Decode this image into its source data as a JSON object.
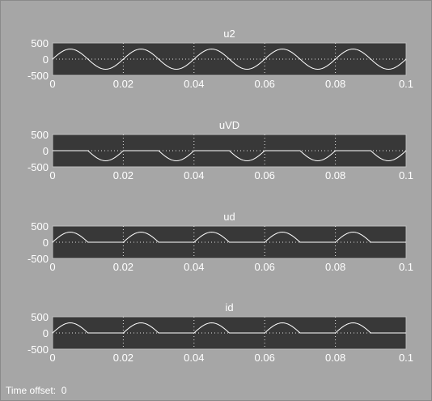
{
  "window": {
    "time_offset_label": "Time offset:",
    "time_offset_value": "0"
  },
  "colors": {
    "window_bg": "#a6a6a6",
    "plot_bg": "#383838",
    "trace": "#ffffff",
    "grid": "#e0e0e0",
    "text": "#ffffff"
  },
  "chart_data": [
    {
      "type": "line",
      "title": "u2",
      "xlim": [
        0,
        0.1
      ],
      "ylim": [
        -500,
        500
      ],
      "x_ticks": [
        "0",
        "0.02",
        "0.04",
        "0.06",
        "0.08",
        "0.1"
      ],
      "y_ticks": [
        "500",
        "0",
        "-500"
      ],
      "grid": true,
      "series": [
        {
          "amplitude": 311,
          "frequency_hz": 50,
          "waveform": "sine"
        }
      ]
    },
    {
      "type": "line",
      "title": "uVD",
      "xlim": [
        0,
        0.1
      ],
      "ylim": [
        -500,
        500
      ],
      "x_ticks": [
        "0",
        "0.02",
        "0.04",
        "0.06",
        "0.08",
        "0.1"
      ],
      "y_ticks": [
        "500",
        "0",
        "-500"
      ],
      "grid": true,
      "series": [
        {
          "amplitude": 311,
          "frequency_hz": 50,
          "waveform": "negative half-wave"
        }
      ]
    },
    {
      "type": "line",
      "title": "ud",
      "xlim": [
        0,
        0.1
      ],
      "ylim": [
        -500,
        500
      ],
      "x_ticks": [
        "0",
        "0.02",
        "0.04",
        "0.06",
        "0.08",
        "0.1"
      ],
      "y_ticks": [
        "500",
        "0",
        "-500"
      ],
      "grid": true,
      "series": [
        {
          "amplitude": 311,
          "frequency_hz": 50,
          "waveform": "positive half-wave"
        }
      ]
    },
    {
      "type": "line",
      "title": "id",
      "xlim": [
        0,
        0.1
      ],
      "ylim": [
        -500,
        500
      ],
      "x_ticks": [
        "0",
        "0.02",
        "0.04",
        "0.06",
        "0.08",
        "0.1"
      ],
      "y_ticks": [
        "500",
        "0",
        "-500"
      ],
      "grid": true,
      "series": [
        {
          "amplitude": 311,
          "frequency_hz": 50,
          "waveform": "positive half-wave"
        }
      ]
    }
  ]
}
